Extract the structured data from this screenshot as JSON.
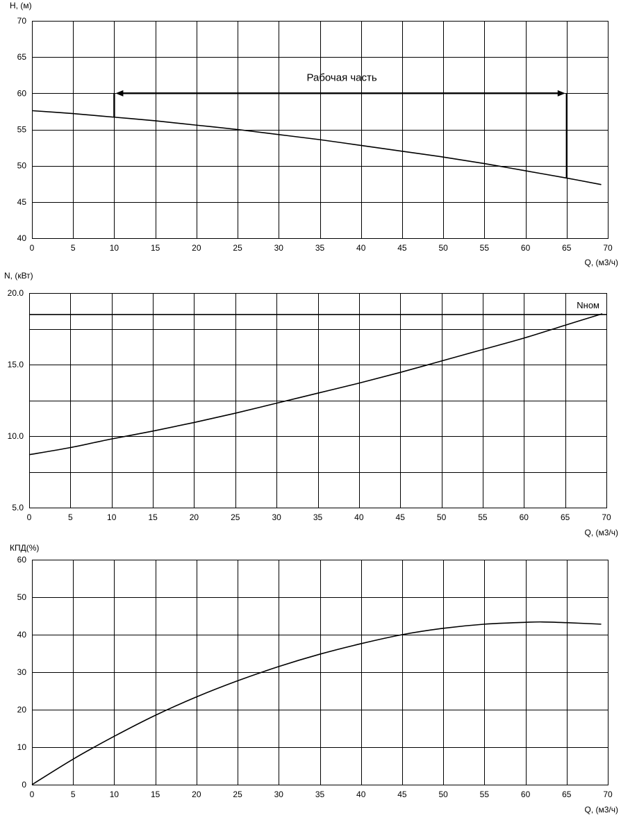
{
  "chart_data": [
    {
      "type": "line",
      "ylabel": "H, (м)",
      "xlabel": "Q, (м3/ч)",
      "xlim": [
        0,
        70
      ],
      "ylim": [
        40,
        70
      ],
      "xticks": [
        "0",
        "5",
        "10",
        "15",
        "20",
        "25",
        "30",
        "35",
        "40",
        "45",
        "50",
        "55",
        "60",
        "65",
        "70"
      ],
      "yticks": [
        "40",
        "45",
        "50",
        "55",
        "60",
        "65",
        "70"
      ],
      "grid": true,
      "series": [
        {
          "x": [
            0,
            5,
            10,
            15,
            20,
            25,
            30,
            35,
            40,
            45,
            50,
            55,
            60,
            65,
            69.2
          ],
          "values": [
            57.6,
            57.2,
            56.7,
            56.2,
            55.6,
            55.0,
            54.3,
            53.6,
            52.8,
            52.0,
            51.2,
            50.3,
            49.3,
            48.3,
            47.4
          ]
        }
      ],
      "working_range": {
        "label": "Рабочая часть",
        "x_start": 10,
        "x_end": 65,
        "arrow_y": 60
      }
    },
    {
      "type": "line",
      "ylabel": "N, (кВт)",
      "xlabel": "Q, (м3/ч)",
      "xlim": [
        0,
        70
      ],
      "ylim": [
        5,
        20
      ],
      "xticks": [
        "0",
        "5",
        "10",
        "15",
        "20",
        "25",
        "30",
        "35",
        "40",
        "45",
        "50",
        "55",
        "60",
        "65",
        "70"
      ],
      "yticks": [
        "5.0",
        "10.0",
        "15.0",
        "20.0"
      ],
      "grid": true,
      "series": [
        {
          "x": [
            0,
            5,
            10,
            15,
            20,
            25,
            30,
            35,
            40,
            45,
            50,
            55,
            60,
            65,
            69.5
          ],
          "values": [
            8.7,
            9.2,
            9.8,
            10.35,
            10.95,
            11.6,
            12.3,
            13.0,
            13.7,
            14.45,
            15.25,
            16.05,
            16.85,
            17.75,
            18.55
          ]
        }
      ],
      "nominal": {
        "label": "Nном",
        "value": 18.5
      }
    },
    {
      "type": "line",
      "ylabel": "КПД(%)",
      "xlabel": "Q, (м3/ч)",
      "xlim": [
        0,
        70
      ],
      "ylim": [
        0,
        60
      ],
      "xticks": [
        "0",
        "5",
        "10",
        "15",
        "20",
        "25",
        "30",
        "35",
        "40",
        "45",
        "50",
        "55",
        "60",
        "65",
        "70"
      ],
      "yticks": [
        "0",
        "10",
        "20",
        "30",
        "40",
        "50",
        "60"
      ],
      "grid": true,
      "series": [
        {
          "x": [
            0,
            5,
            10,
            15,
            20,
            25,
            30,
            35,
            40,
            45,
            50,
            55,
            60,
            62,
            65,
            69.2
          ],
          "values": [
            0,
            6.8,
            12.9,
            18.5,
            23.4,
            27.7,
            31.5,
            34.8,
            37.6,
            40.0,
            41.7,
            42.8,
            43.3,
            43.4,
            43.2,
            42.8
          ]
        }
      ]
    }
  ]
}
